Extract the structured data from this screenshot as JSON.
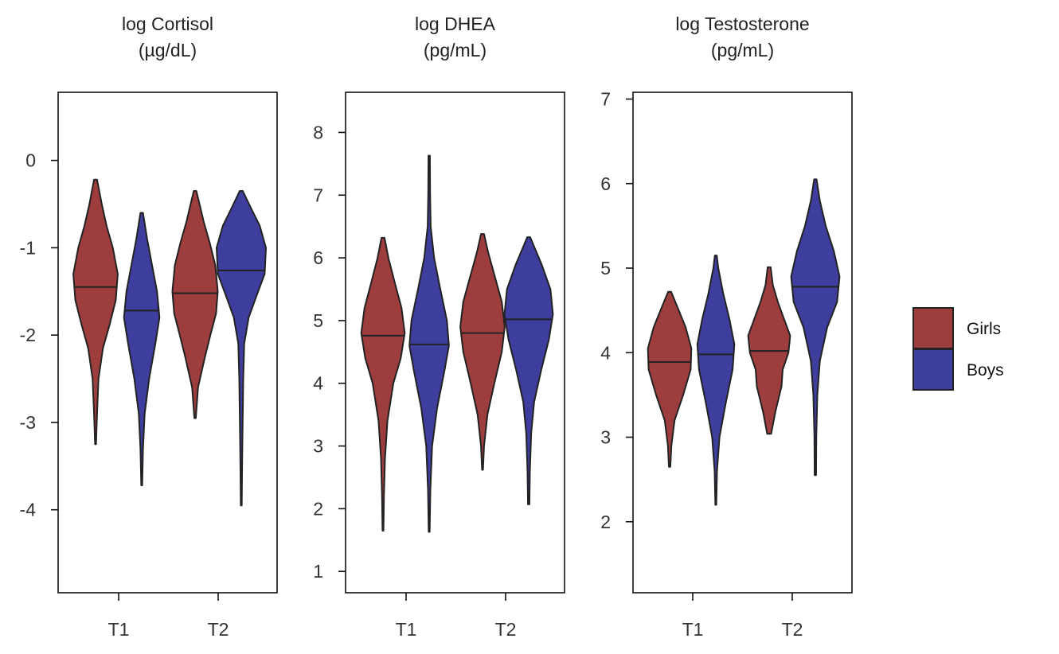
{
  "colors": {
    "Girls": "#9e3d3d",
    "Boys": "#3e3e9e"
  },
  "legend": {
    "placement": "right",
    "entries": [
      "Girls",
      "Boys"
    ]
  },
  "chart_data": [
    {
      "type": "violin",
      "title_line1": "log Cortisol",
      "title_line2": "(µg/dL)",
      "categories": [
        "T1",
        "T2"
      ],
      "yticks": [
        0,
        -1,
        -2,
        -3,
        -4
      ],
      "ylim": [
        -4.95,
        0.78
      ],
      "series": [
        {
          "name": "Girls",
          "violins": [
            {
              "category": "T1",
              "min": -3.25,
              "max": -0.22,
              "median": -1.45,
              "profile": [
                [
                  -3.25,
                  0.02
                ],
                [
                  -2.9,
                  0.06
                ],
                [
                  -2.5,
                  0.12
                ],
                [
                  -2.15,
                  0.3
                ],
                [
                  -1.9,
                  0.55
                ],
                [
                  -1.6,
                  0.82
                ],
                [
                  -1.3,
                  0.9
                ],
                [
                  -1.0,
                  0.7
                ],
                [
                  -0.75,
                  0.45
                ],
                [
                  -0.5,
                  0.25
                ],
                [
                  -0.22,
                  0.06
                ]
              ]
            },
            {
              "category": "T2",
              "min": -2.95,
              "max": -0.35,
              "median": -1.52,
              "profile": [
                [
                  -2.95,
                  0.03
                ],
                [
                  -2.6,
                  0.12
                ],
                [
                  -2.25,
                  0.4
                ],
                [
                  -2.0,
                  0.62
                ],
                [
                  -1.75,
                  0.85
                ],
                [
                  -1.5,
                  0.92
                ],
                [
                  -1.2,
                  0.82
                ],
                [
                  -0.95,
                  0.6
                ],
                [
                  -0.7,
                  0.35
                ],
                [
                  -0.5,
                  0.18
                ],
                [
                  -0.35,
                  0.05
                ]
              ]
            }
          ]
        },
        {
          "name": "Boys",
          "violins": [
            {
              "category": "T1",
              "min": -3.72,
              "max": -0.6,
              "median": -1.72,
              "profile": [
                [
                  -3.72,
                  0.02
                ],
                [
                  -3.3,
                  0.05
                ],
                [
                  -2.9,
                  0.12
                ],
                [
                  -2.5,
                  0.3
                ],
                [
                  -2.1,
                  0.55
                ],
                [
                  -1.8,
                  0.72
                ],
                [
                  -1.5,
                  0.62
                ],
                [
                  -1.2,
                  0.42
                ],
                [
                  -0.9,
                  0.22
                ],
                [
                  -0.6,
                  0.05
                ]
              ]
            },
            {
              "category": "T2",
              "min": -3.95,
              "max": -0.35,
              "median": -1.26,
              "profile": [
                [
                  -3.95,
                  0.02
                ],
                [
                  -3.4,
                  0.04
                ],
                [
                  -2.9,
                  0.06
                ],
                [
                  -2.5,
                  0.08
                ],
                [
                  -2.1,
                  0.12
                ],
                [
                  -1.8,
                  0.3
                ],
                [
                  -1.55,
                  0.62
                ],
                [
                  -1.3,
                  0.95
                ],
                [
                  -1.0,
                  1.0
                ],
                [
                  -0.75,
                  0.75
                ],
                [
                  -0.55,
                  0.4
                ],
                [
                  -0.35,
                  0.06
                ]
              ]
            }
          ]
        }
      ]
    },
    {
      "type": "violin",
      "title_line1": "log DHEA",
      "title_line2": "(pg/mL)",
      "categories": [
        "T1",
        "T2"
      ],
      "yticks": [
        8,
        7,
        6,
        5,
        4,
        3,
        2,
        1
      ],
      "ylim": [
        0.66,
        8.64
      ],
      "series": [
        {
          "name": "Girls",
          "violins": [
            {
              "category": "T1",
              "min": 1.65,
              "max": 6.32,
              "median": 4.76,
              "profile": [
                [
                  1.65,
                  0.02
                ],
                [
                  2.2,
                  0.04
                ],
                [
                  2.8,
                  0.08
                ],
                [
                  3.4,
                  0.18
                ],
                [
                  4.0,
                  0.42
                ],
                [
                  4.4,
                  0.72
                ],
                [
                  4.8,
                  0.88
                ],
                [
                  5.2,
                  0.75
                ],
                [
                  5.6,
                  0.48
                ],
                [
                  6.0,
                  0.22
                ],
                [
                  6.32,
                  0.06
                ]
              ]
            },
            {
              "category": "T2",
              "min": 2.62,
              "max": 6.38,
              "median": 4.8,
              "profile": [
                [
                  2.62,
                  0.02
                ],
                [
                  3.0,
                  0.06
                ],
                [
                  3.5,
                  0.2
                ],
                [
                  4.0,
                  0.48
                ],
                [
                  4.5,
                  0.78
                ],
                [
                  4.9,
                  0.9
                ],
                [
                  5.3,
                  0.78
                ],
                [
                  5.7,
                  0.5
                ],
                [
                  6.1,
                  0.22
                ],
                [
                  6.38,
                  0.06
                ]
              ]
            }
          ]
        },
        {
          "name": "Boys",
          "violins": [
            {
              "category": "T1",
              "min": 1.63,
              "max": 7.63,
              "median": 4.62,
              "profile": [
                [
                  1.63,
                  0.02
                ],
                [
                  2.3,
                  0.05
                ],
                [
                  3.0,
                  0.12
                ],
                [
                  3.6,
                  0.32
                ],
                [
                  4.2,
                  0.62
                ],
                [
                  4.6,
                  0.8
                ],
                [
                  5.0,
                  0.72
                ],
                [
                  5.5,
                  0.45
                ],
                [
                  6.0,
                  0.2
                ],
                [
                  6.5,
                  0.06
                ],
                [
                  7.0,
                  0.04
                ],
                [
                  7.63,
                  0.03
                ]
              ]
            },
            {
              "category": "T2",
              "min": 2.07,
              "max": 6.33,
              "median": 5.02,
              "profile": [
                [
                  2.07,
                  0.03
                ],
                [
                  2.6,
                  0.05
                ],
                [
                  3.2,
                  0.1
                ],
                [
                  3.7,
                  0.22
                ],
                [
                  4.2,
                  0.5
                ],
                [
                  4.7,
                  0.82
                ],
                [
                  5.1,
                  0.98
                ],
                [
                  5.5,
                  0.88
                ],
                [
                  5.9,
                  0.52
                ],
                [
                  6.15,
                  0.25
                ],
                [
                  6.33,
                  0.06
                ]
              ]
            }
          ]
        }
      ]
    },
    {
      "type": "violin",
      "title_line1": "log Testosterone",
      "title_line2": "(pg/mL)",
      "categories": [
        "T1",
        "T2"
      ],
      "yticks": [
        7,
        6,
        5,
        4,
        3,
        2
      ],
      "ylim": [
        1.16,
        7.08
      ],
      "series": [
        {
          "name": "Girls",
          "violins": [
            {
              "category": "T1",
              "min": 2.65,
              "max": 4.72,
              "median": 3.89,
              "profile": [
                [
                  2.65,
                  0.03
                ],
                [
                  2.9,
                  0.07
                ],
                [
                  3.2,
                  0.2
                ],
                [
                  3.5,
                  0.55
                ],
                [
                  3.8,
                  0.85
                ],
                [
                  4.05,
                  0.88
                ],
                [
                  4.3,
                  0.65
                ],
                [
                  4.55,
                  0.3
                ],
                [
                  4.72,
                  0.06
                ]
              ]
            },
            {
              "category": "T2",
              "min": 3.04,
              "max": 5.01,
              "median": 4.02,
              "profile": [
                [
                  3.04,
                  0.08
                ],
                [
                  3.3,
                  0.25
                ],
                [
                  3.6,
                  0.5
                ],
                [
                  3.8,
                  0.55
                ],
                [
                  4.0,
                  0.78
                ],
                [
                  4.2,
                  0.85
                ],
                [
                  4.4,
                  0.6
                ],
                [
                  4.6,
                  0.35
                ],
                [
                  4.8,
                  0.15
                ],
                [
                  5.01,
                  0.06
                ]
              ]
            }
          ]
        },
        {
          "name": "Boys",
          "violins": [
            {
              "category": "T1",
              "min": 2.2,
              "max": 5.15,
              "median": 3.98,
              "profile": [
                [
                  2.2,
                  0.02
                ],
                [
                  2.6,
                  0.05
                ],
                [
                  3.0,
                  0.15
                ],
                [
                  3.4,
                  0.4
                ],
                [
                  3.8,
                  0.68
                ],
                [
                  4.1,
                  0.75
                ],
                [
                  4.4,
                  0.55
                ],
                [
                  4.7,
                  0.3
                ],
                [
                  5.0,
                  0.1
                ],
                [
                  5.15,
                  0.04
                ]
              ]
            },
            {
              "category": "T2",
              "min": 2.55,
              "max": 6.05,
              "median": 4.78,
              "profile": [
                [
                  2.55,
                  0.03
                ],
                [
                  3.0,
                  0.04
                ],
                [
                  3.5,
                  0.08
                ],
                [
                  3.9,
                  0.18
                ],
                [
                  4.3,
                  0.48
                ],
                [
                  4.6,
                  0.88
                ],
                [
                  4.9,
                  0.98
                ],
                [
                  5.2,
                  0.75
                ],
                [
                  5.5,
                  0.42
                ],
                [
                  5.8,
                  0.18
                ],
                [
                  6.05,
                  0.05
                ]
              ]
            }
          ]
        }
      ]
    }
  ]
}
